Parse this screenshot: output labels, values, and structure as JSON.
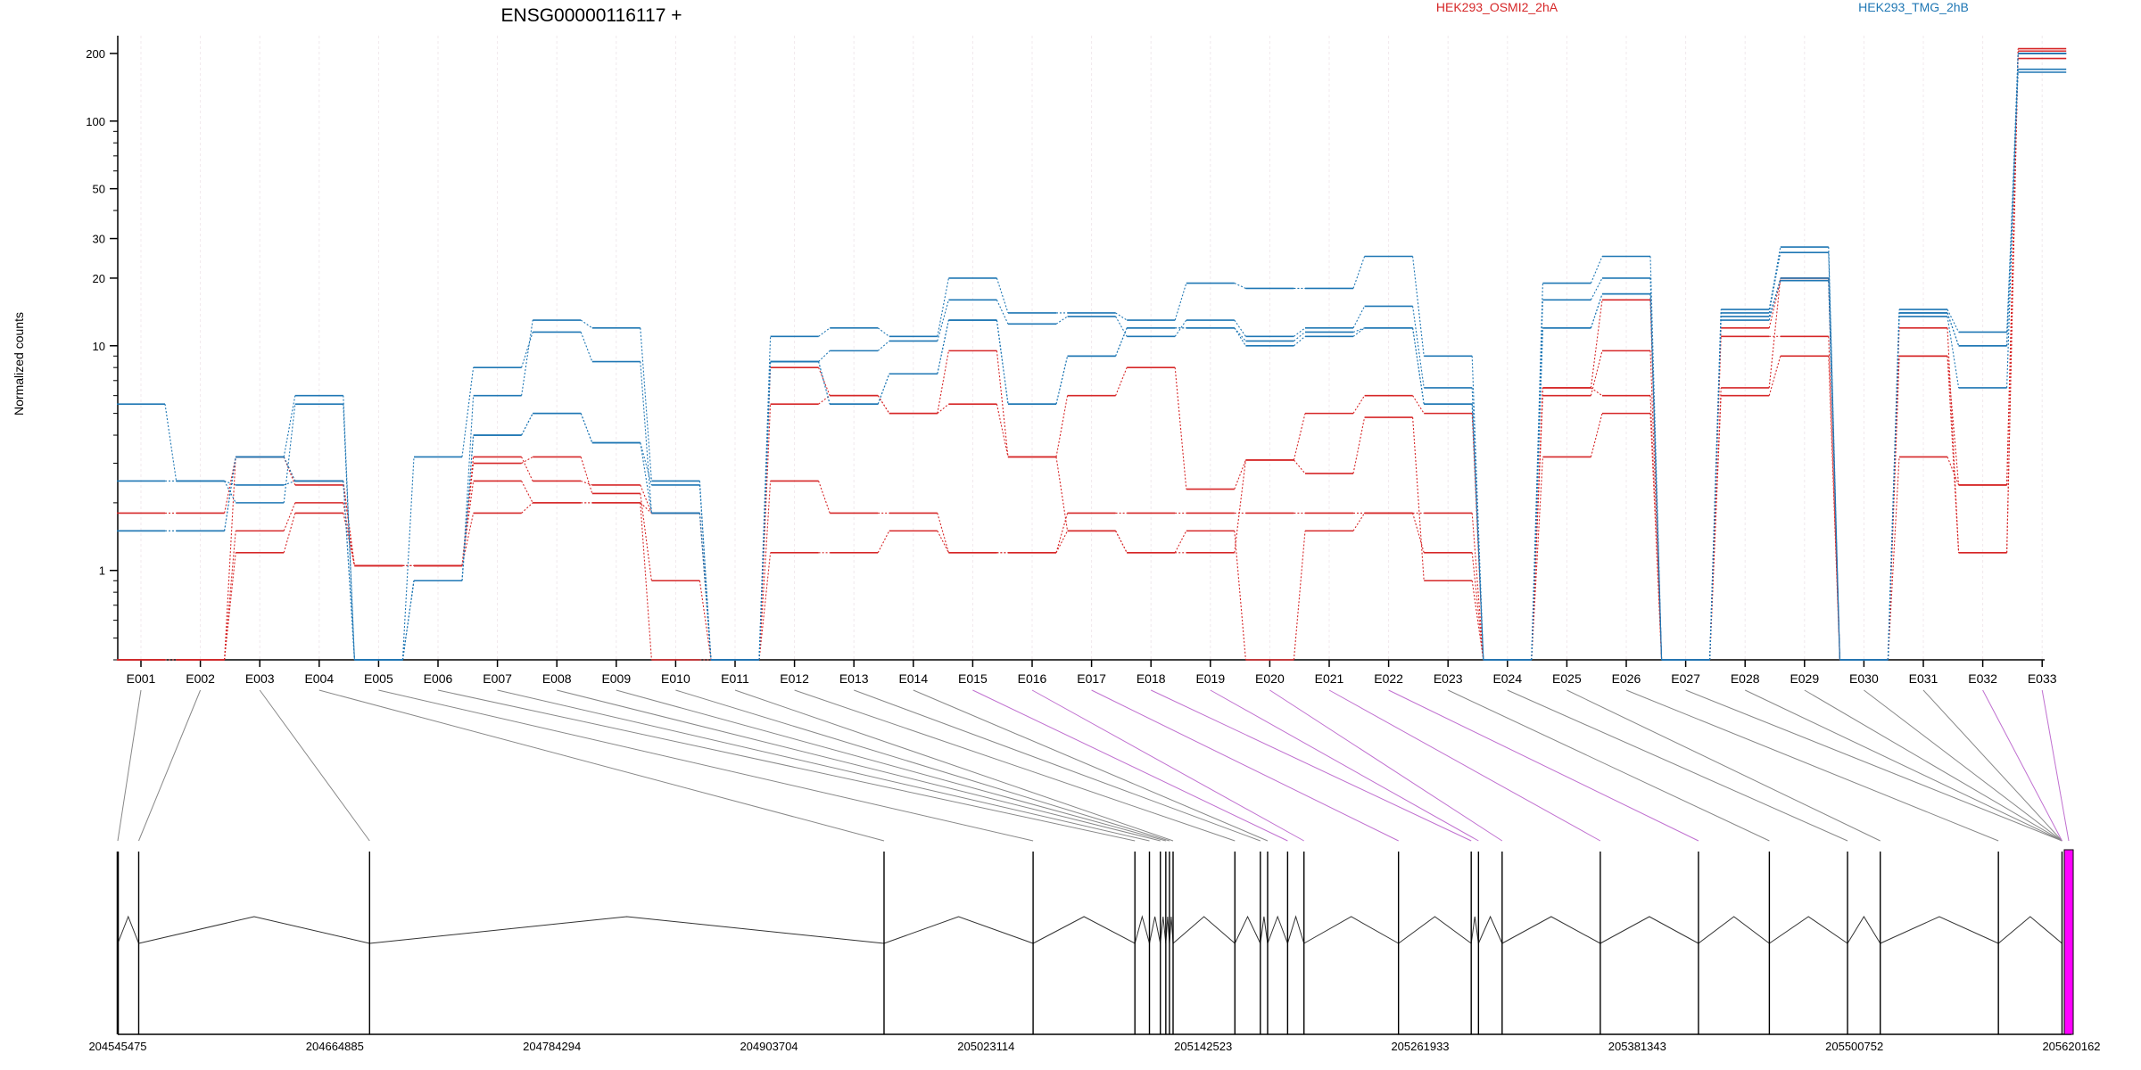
{
  "title": "ENSG00000116117 +",
  "ylabel": "Normalized counts",
  "legend": [
    {
      "name": "HEK293_OSMI2_2hA",
      "color": "#d62728"
    },
    {
      "name": "HEK293_TMG_2hB",
      "color": "#1f77b4"
    }
  ],
  "chart_data": {
    "type": "line",
    "title": "ENSG00000116117 +",
    "ylabel": "Normalized counts",
    "yscale": "log",
    "ylim": [
      0.4,
      240
    ],
    "yticks": [
      1,
      10,
      20,
      30,
      50,
      100,
      200
    ],
    "categories": [
      "E001",
      "E002",
      "E003",
      "E004",
      "E005",
      "E006",
      "E007",
      "E008",
      "E009",
      "E010",
      "E011",
      "E012",
      "E013",
      "E014",
      "E015",
      "E016",
      "E017",
      "E018",
      "E019",
      "E020",
      "E021",
      "E022",
      "E023",
      "E024",
      "E025",
      "E026",
      "E027",
      "E028",
      "E029",
      "E030",
      "E031",
      "E032",
      "E033"
    ],
    "series": [
      {
        "group": "HEK293_OSMI2_2hA",
        "color": "#d62728",
        "values": [
          1.8,
          1.8,
          3.2,
          2.5,
          1.05,
          1.05,
          3.2,
          2.5,
          2.4,
          1.8,
          0.4,
          2.5,
          1.8,
          1.8,
          1.2,
          1.2,
          1.8,
          1.8,
          1.8,
          1.8,
          1.8,
          1.8,
          1.8,
          0.4,
          6.5,
          16,
          0.4,
          6.5,
          20,
          0.4,
          3.2,
          2.4,
          190
        ]
      },
      {
        "group": "HEK293_OSMI2_2hA",
        "color": "#d62728",
        "values": [
          0.4,
          0.4,
          1.2,
          1.8,
          1.05,
          1.05,
          3.0,
          3.2,
          2.2,
          0.9,
          0.4,
          1.2,
          1.2,
          1.5,
          1.2,
          1.2,
          1.5,
          1.2,
          1.5,
          0.4,
          1.5,
          1.8,
          1.2,
          0.4,
          3.2,
          5.0,
          0.4,
          11,
          11,
          0.4,
          12,
          1.2,
          200
        ]
      },
      {
        "group": "HEK293_OSMI2_2hA",
        "color": "#d62728",
        "values": [
          0.4,
          0.4,
          1.5,
          2.0,
          1.05,
          1.05,
          1.8,
          2.0,
          2.0,
          0.4,
          0.4,
          5.5,
          6.0,
          5.0,
          9.5,
          3.2,
          6.0,
          8.0,
          2.3,
          3.1,
          5.0,
          6.0,
          5.0,
          0.4,
          6.0,
          9.5,
          0.4,
          6.0,
          9.0,
          0.4,
          9.0,
          1.2,
          210
        ]
      },
      {
        "group": "HEK293_OSMI2_2hA",
        "color": "#d62728",
        "values": [
          0.4,
          0.4,
          3.2,
          2.4,
          1.05,
          1.05,
          2.5,
          2.0,
          2.0,
          1.8,
          0.4,
          8.0,
          6.0,
          5.0,
          5.5,
          3.2,
          1.5,
          1.2,
          1.2,
          3.1,
          2.7,
          4.8,
          0.9,
          0.4,
          6.5,
          6.0,
          0.4,
          12,
          19.5,
          0.4,
          9.0,
          2.4,
          205
        ]
      },
      {
        "group": "HEK293_TMG_2hB",
        "color": "#1f77b4",
        "values": [
          5.5,
          2.5,
          2.0,
          5.5,
          0.4,
          0.9,
          4.0,
          5.0,
          3.7,
          2.4,
          0.4,
          11,
          12,
          11,
          20,
          14,
          14,
          13,
          19,
          18,
          18,
          25,
          9.0,
          0.4,
          19,
          25,
          0.4,
          14.5,
          27.5,
          0.4,
          14.5,
          11.5,
          165
        ]
      },
      {
        "group": "HEK293_TMG_2hB",
        "color": "#1f77b4",
        "values": [
          1.5,
          1.5,
          3.2,
          6.0,
          0.4,
          0.9,
          6.0,
          13.0,
          12,
          2.5,
          0.4,
          8.5,
          9.5,
          10.5,
          16,
          12.5,
          13.5,
          11,
          13,
          11,
          12,
          15,
          6.5,
          0.4,
          16,
          20,
          0.4,
          14,
          26,
          0.4,
          14,
          10,
          170
        ]
      },
      {
        "group": "HEK293_TMG_2hB",
        "color": "#1f77b4",
        "values": [
          2.5,
          2.5,
          2.4,
          2.5,
          0.4,
          3.2,
          8.0,
          11.5,
          8.5,
          1.8,
          0.4,
          8.5,
          5.5,
          7.5,
          13,
          5.5,
          9.0,
          12,
          12,
          10,
          11,
          12,
          5.5,
          0.4,
          12,
          17,
          0.4,
          13,
          20,
          0.4,
          13.5,
          6.5,
          200
        ]
      },
      {
        "group": "HEK293_TMG_2hB",
        "color": "#1f77b4",
        "values": [
          1.5,
          1.5,
          3.2,
          2.5,
          0.4,
          0.9,
          4.0,
          5.0,
          3.7,
          1.8,
          0.4,
          8.5,
          5.5,
          7.5,
          13,
          5.5,
          9.0,
          12,
          12,
          10.5,
          11.5,
          12,
          5.5,
          0.4,
          12,
          17,
          0.4,
          13.5,
          19.5,
          0.4,
          14,
          10,
          200
        ]
      }
    ],
    "gene_model": {
      "xticks": [
        "204545475",
        "204664885",
        "204784294",
        "204903704",
        "205023114",
        "205142523",
        "205261933",
        "205381343",
        "205500752",
        "205620162"
      ],
      "xrange": [
        204545475,
        205620162
      ],
      "exon_starts": [
        204545475,
        204557000,
        204684000,
        204967000,
        205049000,
        205105000,
        205113000,
        205119000,
        205122000,
        205124000,
        205126000,
        205160000,
        205174000,
        205178000,
        205189000,
        205198000,
        205250000,
        205290000,
        205294000,
        205307000,
        205361000,
        205415000,
        205454000,
        205497000,
        205515000,
        205580000,
        205615000
      ],
      "highlighted": [
        {
          "index": 32,
          "color": "#ff00ff"
        }
      ]
    }
  }
}
